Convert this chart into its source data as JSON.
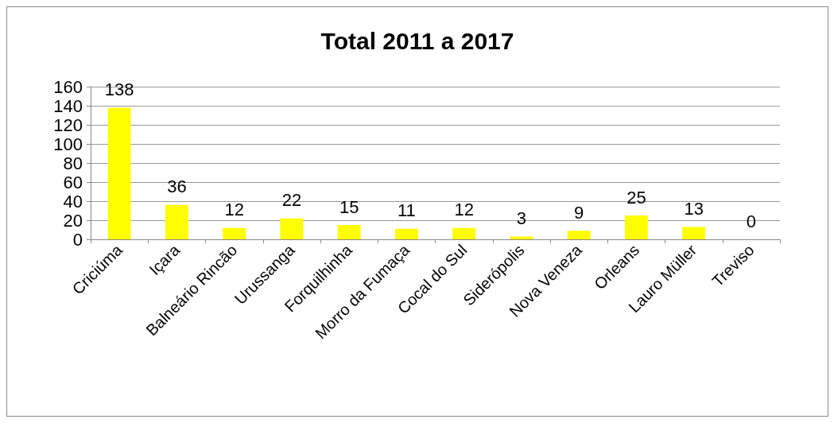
{
  "chart_data": {
    "type": "bar",
    "title": "Total 2011 a 2017",
    "categories": [
      "Criciúma",
      "Içara",
      "Balneário Rincão",
      "Urussanga",
      "Forquilhinha",
      "Morro da Fumaça",
      "Cocal do Sul",
      "Siderópolis",
      "Nova Veneza",
      "Orleans",
      "Lauro Müller",
      "Treviso"
    ],
    "values": [
      138,
      36,
      12,
      22,
      15,
      11,
      12,
      3,
      9,
      25,
      13,
      0
    ],
    "color": "#ffff00",
    "ylim": [
      0,
      160
    ],
    "yticks": [
      0,
      20,
      40,
      60,
      80,
      100,
      120,
      140,
      160
    ],
    "grid": "y",
    "data_labels": true
  }
}
